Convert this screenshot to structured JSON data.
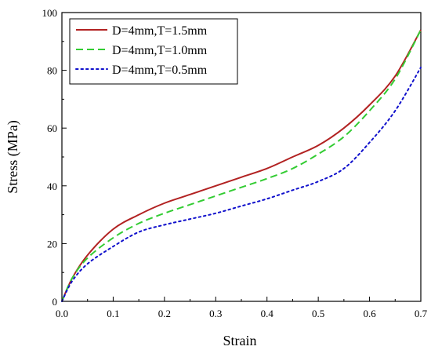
{
  "chart_data": {
    "type": "line",
    "xlabel": "Strain",
    "ylabel": "Stress (MPa)",
    "xlim": [
      0.0,
      0.7
    ],
    "ylim": [
      0,
      100
    ],
    "x_ticks": [
      0.0,
      0.1,
      0.2,
      0.3,
      0.4,
      0.5,
      0.6,
      0.7
    ],
    "x_tick_labels": [
      "0.0",
      "0.1",
      "0.2",
      "0.3",
      "0.4",
      "0.5",
      "0.6",
      "0.7"
    ],
    "y_ticks": [
      0,
      20,
      40,
      60,
      80,
      100
    ],
    "y_tick_labels": [
      "0",
      "20",
      "40",
      "60",
      "80",
      "100"
    ],
    "grid": false,
    "legend_position": "top-left",
    "series": [
      {
        "name": "D=4mm,T=1.5mm",
        "color": "#b22222",
        "style": "solid",
        "x": [
          0.0,
          0.02,
          0.05,
          0.1,
          0.15,
          0.2,
          0.25,
          0.3,
          0.35,
          0.4,
          0.45,
          0.5,
          0.55,
          0.6,
          0.65,
          0.7
        ],
        "y": [
          0,
          8,
          16,
          25,
          30,
          34,
          37,
          40,
          43,
          46,
          50,
          54,
          60,
          68,
          78,
          94
        ]
      },
      {
        "name": "D=4mm,T=1.0mm",
        "color": "#33cc33",
        "style": "dashed",
        "x": [
          0.0,
          0.02,
          0.05,
          0.1,
          0.15,
          0.2,
          0.25,
          0.3,
          0.35,
          0.4,
          0.45,
          0.5,
          0.55,
          0.6,
          0.65,
          0.7
        ],
        "y": [
          0,
          8,
          15,
          22,
          27,
          30.5,
          33.5,
          36.5,
          39.5,
          42.5,
          46,
          51,
          57,
          66,
          77,
          94
        ]
      },
      {
        "name": "D=4mm,T=0.5mm",
        "color": "#1010cc",
        "style": "dotted",
        "x": [
          0.0,
          0.02,
          0.05,
          0.1,
          0.15,
          0.2,
          0.25,
          0.3,
          0.35,
          0.4,
          0.45,
          0.5,
          0.55,
          0.6,
          0.65,
          0.7
        ],
        "y": [
          0,
          7,
          13,
          19,
          24,
          26.5,
          28.5,
          30.5,
          33,
          35.5,
          38.5,
          41.5,
          46,
          55,
          66,
          81
        ]
      }
    ]
  }
}
